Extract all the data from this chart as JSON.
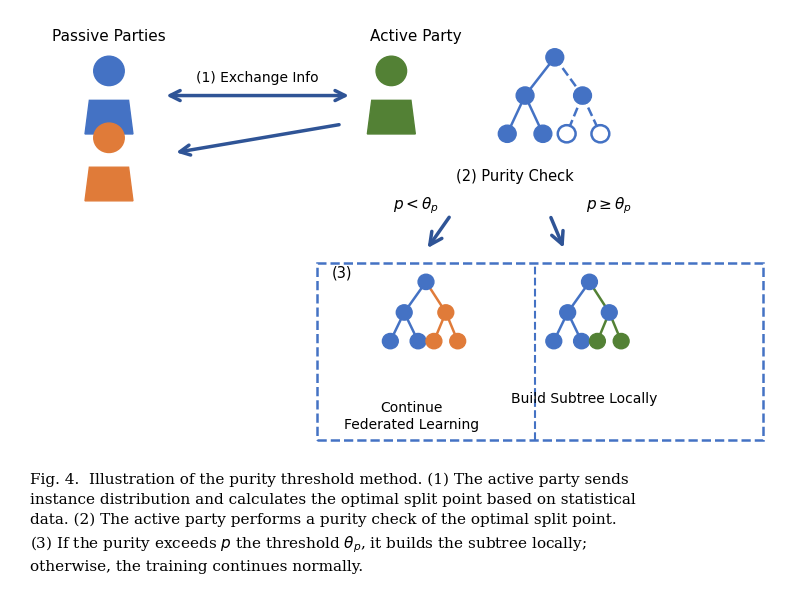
{
  "blue_color": "#4472C4",
  "green_color": "#538135",
  "orange_color": "#E07B39",
  "dashed_border_color": "#4472C4",
  "arrow_color": "#2F5496",
  "bg_color": "#FFFFFF",
  "passive_label": "Passive Parties",
  "active_label": "Active Party",
  "exchange_label": "(1) Exchange Info",
  "purity_check_label": "(2) Purity Check",
  "left_condition": "p < θ_p",
  "right_condition": "p ≥ θ_p",
  "box3_label": "(3)",
  "continue_label": "Continue\nFederated Learning",
  "local_label": "Build Subtree Locally",
  "caption": "Fig. 4.  Illustration of the purity threshold method. (1) The active party sends\ninstance distribution and calculates the optimal split point based on statistical\ndata. (2) The active party performs a purity check of the optimal split point.\n(3) If the purity exceeds p the threshold θ_p, it builds the subtree locally;\notherwise, the training continues normally."
}
